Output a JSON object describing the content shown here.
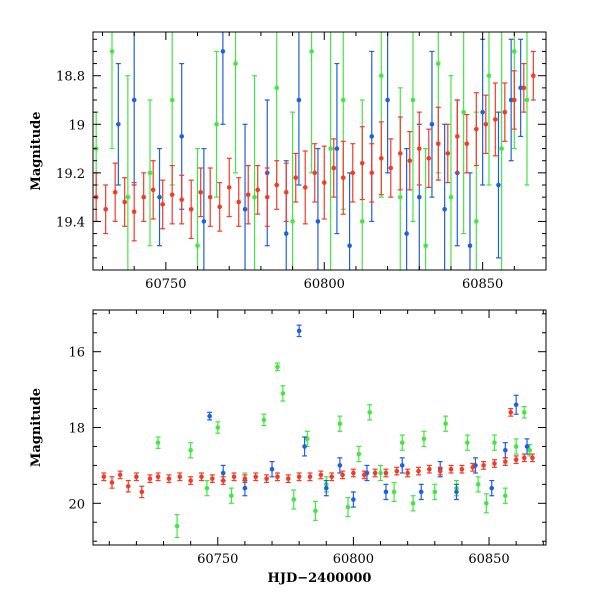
{
  "chart_data": [
    {
      "type": "scatter",
      "title": "",
      "xlabel": "",
      "ylabel": "Magnitude",
      "xlim": [
        60727,
        60870
      ],
      "ylim": [
        19.6,
        18.62
      ],
      "y_inverted": true,
      "x_ticks": [
        60750,
        60800,
        60850
      ],
      "x_tick_labels": [
        "60750",
        "60800",
        "60850"
      ],
      "y_ticks": [
        18.8,
        19.0,
        19.2,
        19.4
      ],
      "y_tick_labels": [
        "18.8",
        "19",
        "19.2",
        "19.4"
      ],
      "grid": false,
      "colors": {
        "blue": "#1f5fe0",
        "green": "#44e644",
        "red": "#f03c28"
      },
      "series": [
        {
          "color_key": "green",
          "points": [
            [
              60728,
              19.1,
              0.15
            ],
            [
              60733,
              18.7,
              0.4
            ],
            [
              60738,
              19.3,
              0.5
            ],
            [
              60745,
              19.2,
              0.3
            ],
            [
              60752,
              18.9,
              0.35
            ],
            [
              60760,
              19.5,
              0.4
            ],
            [
              60766,
              19.0,
              0.3
            ],
            [
              60772,
              18.75,
              0.45
            ],
            [
              60778,
              19.3,
              0.5
            ],
            [
              60785,
              18.85,
              0.4
            ],
            [
              60790,
              19.4,
              0.45
            ],
            [
              60796,
              18.7,
              0.5
            ],
            [
              60802,
              19.1,
              0.5
            ],
            [
              60806,
              18.9,
              0.45
            ],
            [
              60812,
              19.4,
              0.5
            ],
            [
              60818,
              18.8,
              0.5
            ],
            [
              60824,
              19.3,
              0.45
            ],
            [
              60828,
              18.9,
              0.5
            ],
            [
              60832,
              19.5,
              0.4
            ],
            [
              60836,
              18.75,
              0.45
            ],
            [
              60840,
              19.3,
              0.5
            ],
            [
              60844,
              18.95,
              0.5
            ],
            [
              60848,
              19.4,
              0.45
            ],
            [
              60852,
              18.8,
              0.45
            ],
            [
              60856,
              19.1,
              0.5
            ],
            [
              60860,
              18.7,
              0.4
            ],
            [
              60864,
              18.9,
              0.35
            ]
          ]
        },
        {
          "color_key": "blue",
          "points": [
            [
              60735,
              19.0,
              0.25
            ],
            [
              60740,
              18.9,
              0.35
            ],
            [
              60748,
              19.3,
              0.2
            ],
            [
              60755,
              19.05,
              0.3
            ],
            [
              60762,
              19.4,
              0.3
            ],
            [
              60768,
              18.7,
              0.3
            ],
            [
              60775,
              19.35,
              0.35
            ],
            [
              60782,
              19.2,
              0.3
            ],
            [
              60788,
              19.45,
              0.3
            ],
            [
              60792,
              18.9,
              0.35
            ],
            [
              60798,
              19.4,
              0.3
            ],
            [
              60804,
              19.1,
              0.35
            ],
            [
              60808,
              19.5,
              0.3
            ],
            [
              60815,
              19.05,
              0.35
            ],
            [
              60820,
              18.9,
              0.3
            ],
            [
              60826,
              19.45,
              0.35
            ],
            [
              60830,
              19.3,
              0.3
            ],
            [
              60834,
              19.0,
              0.3
            ],
            [
              60838,
              19.35,
              0.35
            ],
            [
              60842,
              19.2,
              0.3
            ],
            [
              60846,
              19.5,
              0.3
            ],
            [
              60850,
              18.95,
              0.3
            ],
            [
              60855,
              19.25,
              0.3
            ],
            [
              60859,
              18.9,
              0.25
            ],
            [
              60862,
              18.85,
              0.2
            ]
          ]
        },
        {
          "color_key": "red",
          "points": [
            [
              60728,
              19.3,
              0.1
            ],
            [
              60731,
              19.35,
              0.1
            ],
            [
              60734,
              19.28,
              0.12
            ],
            [
              60737,
              19.32,
              0.1
            ],
            [
              60740,
              19.36,
              0.12
            ],
            [
              60743,
              19.3,
              0.1
            ],
            [
              60746,
              19.27,
              0.12
            ],
            [
              60749,
              19.33,
              0.1
            ],
            [
              60752,
              19.29,
              0.12
            ],
            [
              60755,
              19.31,
              0.1
            ],
            [
              60758,
              19.35,
              0.12
            ],
            [
              60761,
              19.28,
              0.1
            ],
            [
              60764,
              19.3,
              0.12
            ],
            [
              60767,
              19.34,
              0.1
            ],
            [
              60770,
              19.26,
              0.12
            ],
            [
              60773,
              19.32,
              0.1
            ],
            [
              60776,
              19.29,
              0.12
            ],
            [
              60779,
              19.27,
              0.1
            ],
            [
              60782,
              19.3,
              0.12
            ],
            [
              60785,
              19.25,
              0.1
            ],
            [
              60788,
              19.28,
              0.12
            ],
            [
              60791,
              19.22,
              0.1
            ],
            [
              60794,
              19.26,
              0.15
            ],
            [
              60797,
              19.2,
              0.12
            ],
            [
              60800,
              19.24,
              0.15
            ],
            [
              60803,
              19.18,
              0.12
            ],
            [
              60806,
              19.22,
              0.15
            ],
            [
              60809,
              19.2,
              0.12
            ],
            [
              60812,
              19.16,
              0.15
            ],
            [
              60815,
              19.2,
              0.12
            ],
            [
              60818,
              19.14,
              0.15
            ],
            [
              60821,
              19.18,
              0.12
            ],
            [
              60824,
              19.12,
              0.15
            ],
            [
              60827,
              19.15,
              0.12
            ],
            [
              60830,
              19.1,
              0.15
            ],
            [
              60833,
              19.14,
              0.12
            ],
            [
              60836,
              19.08,
              0.15
            ],
            [
              60839,
              19.12,
              0.12
            ],
            [
              60842,
              19.05,
              0.15
            ],
            [
              60845,
              19.08,
              0.12
            ],
            [
              60848,
              19.02,
              0.15
            ],
            [
              60851,
              19.0,
              0.12
            ],
            [
              60854,
              18.98,
              0.15
            ],
            [
              60857,
              18.95,
              0.12
            ],
            [
              60860,
              18.9,
              0.12
            ],
            [
              60863,
              18.85,
              0.1
            ],
            [
              60866,
              18.8,
              0.1
            ]
          ]
        }
      ]
    },
    {
      "type": "scatter",
      "title": "",
      "xlabel": "HJD−2400000",
      "ylabel": "Magnitude",
      "xlim": [
        60704,
        60871
      ],
      "ylim": [
        21.1,
        14.9
      ],
      "y_inverted": true,
      "x_ticks": [
        60750,
        60800,
        60850
      ],
      "x_tick_labels": [
        "60750",
        "60800",
        "60850"
      ],
      "y_ticks": [
        16,
        18,
        20
      ],
      "y_tick_labels": [
        "16",
        "18",
        "20"
      ],
      "grid": false,
      "colors": {
        "blue": "#1f5fe0",
        "green": "#44e644",
        "red": "#f03c28"
      },
      "series": [
        {
          "color_key": "green",
          "points": [
            [
              60728,
              18.4,
              0.15
            ],
            [
              60735,
              20.6,
              0.3
            ],
            [
              60740,
              18.6,
              0.2
            ],
            [
              60746,
              19.6,
              0.2
            ],
            [
              60750,
              18.0,
              0.15
            ],
            [
              60755,
              19.8,
              0.2
            ],
            [
              60760,
              19.4,
              0.2
            ],
            [
              60767,
              17.8,
              0.15
            ],
            [
              60772,
              16.4,
              0.1
            ],
            [
              60774,
              17.1,
              0.2
            ],
            [
              60778,
              19.9,
              0.25
            ],
            [
              60783,
              18.3,
              0.2
            ],
            [
              60786,
              20.2,
              0.25
            ],
            [
              60790,
              19.5,
              0.2
            ],
            [
              60795,
              17.9,
              0.2
            ],
            [
              60798,
              20.1,
              0.25
            ],
            [
              60802,
              18.7,
              0.2
            ],
            [
              60806,
              17.6,
              0.2
            ],
            [
              60810,
              19.2,
              0.2
            ],
            [
              60815,
              19.7,
              0.25
            ],
            [
              60818,
              18.4,
              0.2
            ],
            [
              60822,
              20.0,
              0.2
            ],
            [
              60826,
              18.3,
              0.2
            ],
            [
              60830,
              19.7,
              0.2
            ],
            [
              60834,
              17.9,
              0.2
            ],
            [
              60838,
              19.6,
              0.2
            ],
            [
              60842,
              18.4,
              0.2
            ],
            [
              60846,
              19.5,
              0.2
            ],
            [
              60849,
              20.0,
              0.25
            ],
            [
              60852,
              18.4,
              0.2
            ],
            [
              60856,
              19.8,
              0.2
            ],
            [
              60860,
              18.5,
              0.2
            ],
            [
              60863,
              17.6,
              0.15
            ],
            [
              60865,
              18.6,
              0.15
            ]
          ]
        },
        {
          "color_key": "blue",
          "points": [
            [
              60747,
              17.7,
              0.1
            ],
            [
              60752,
              19.2,
              0.2
            ],
            [
              60760,
              19.6,
              0.2
            ],
            [
              60770,
              19.1,
              0.2
            ],
            [
              60780,
              15.45,
              0.15
            ],
            [
              60782,
              18.5,
              0.25
            ],
            [
              60790,
              19.6,
              0.2
            ],
            [
              60795,
              19.0,
              0.2
            ],
            [
              60800,
              19.9,
              0.2
            ],
            [
              60805,
              19.2,
              0.2
            ],
            [
              60812,
              19.7,
              0.2
            ],
            [
              60818,
              19.0,
              0.2
            ],
            [
              60825,
              19.7,
              0.2
            ],
            [
              60832,
              19.1,
              0.2
            ],
            [
              60838,
              19.7,
              0.2
            ],
            [
              60845,
              19.0,
              0.2
            ],
            [
              60851,
              19.6,
              0.2
            ],
            [
              60856,
              18.6,
              0.2
            ],
            [
              60860,
              17.4,
              0.25
            ],
            [
              60864,
              18.5,
              0.2
            ]
          ]
        },
        {
          "color_key": "red",
          "points": [
            [
              60708,
              19.3,
              0.1
            ],
            [
              60711,
              19.45,
              0.15
            ],
            [
              60714,
              19.25,
              0.1
            ],
            [
              60717,
              19.55,
              0.15
            ],
            [
              60720,
              19.3,
              0.1
            ],
            [
              60722,
              19.7,
              0.15
            ],
            [
              60725,
              19.35,
              0.1
            ],
            [
              60728,
              19.3,
              0.1
            ],
            [
              60732,
              19.35,
              0.1
            ],
            [
              60736,
              19.3,
              0.1
            ],
            [
              60740,
              19.4,
              0.1
            ],
            [
              60744,
              19.3,
              0.1
            ],
            [
              60748,
              19.35,
              0.1
            ],
            [
              60752,
              19.4,
              0.1
            ],
            [
              60756,
              19.3,
              0.1
            ],
            [
              60760,
              19.35,
              0.1
            ],
            [
              60764,
              19.3,
              0.1
            ],
            [
              60768,
              19.35,
              0.1
            ],
            [
              60772,
              19.3,
              0.1
            ],
            [
              60776,
              19.35,
              0.1
            ],
            [
              60780,
              19.3,
              0.1
            ],
            [
              60784,
              19.3,
              0.1
            ],
            [
              60788,
              19.25,
              0.1
            ],
            [
              60792,
              19.3,
              0.1
            ],
            [
              60796,
              19.25,
              0.1
            ],
            [
              60800,
              19.2,
              0.1
            ],
            [
              60804,
              19.25,
              0.1
            ],
            [
              60808,
              19.2,
              0.1
            ],
            [
              60812,
              19.2,
              0.1
            ],
            [
              60816,
              19.15,
              0.1
            ],
            [
              60820,
              19.2,
              0.1
            ],
            [
              60824,
              19.15,
              0.1
            ],
            [
              60828,
              19.1,
              0.1
            ],
            [
              60832,
              19.15,
              0.1
            ],
            [
              60836,
              19.1,
              0.1
            ],
            [
              60840,
              19.1,
              0.1
            ],
            [
              60844,
              19.05,
              0.1
            ],
            [
              60848,
              19.0,
              0.1
            ],
            [
              60852,
              18.95,
              0.1
            ],
            [
              60856,
              18.9,
              0.1
            ],
            [
              60858,
              17.6,
              0.1
            ],
            [
              60860,
              18.85,
              0.1
            ],
            [
              60863,
              18.8,
              0.1
            ],
            [
              60866,
              18.8,
              0.1
            ]
          ]
        }
      ]
    }
  ]
}
